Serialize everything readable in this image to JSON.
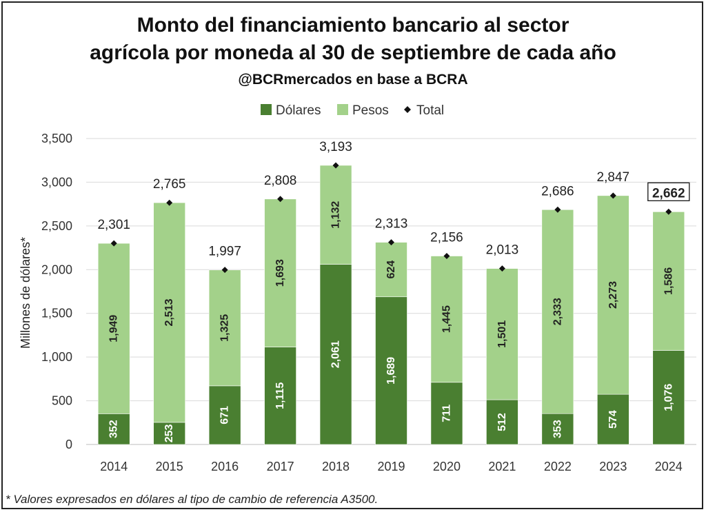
{
  "chart_data": {
    "type": "bar",
    "stacked": true,
    "title_lines": [
      "Monto del financiamiento bancario al sector",
      "agrícola por moneda al 30 de septiembre de cada año"
    ],
    "subtitle": "@BCRmercados en base a BCRA",
    "ylabel": "Millones de dólares*",
    "xlabel": "",
    "ylim": [
      0,
      3500
    ],
    "yticks": [
      0,
      500,
      1000,
      1500,
      2000,
      2500,
      3000,
      3500
    ],
    "ytick_labels": [
      "0",
      "500",
      "1,000",
      "1,500",
      "2,000",
      "2,500",
      "3,000",
      "3,500"
    ],
    "grid": true,
    "legend_position": "top",
    "categories": [
      "2014",
      "2015",
      "2016",
      "2017",
      "2018",
      "2019",
      "2020",
      "2021",
      "2022",
      "2023",
      "2024"
    ],
    "series": [
      {
        "name": "Dólares",
        "color": "#4a7f31",
        "values": [
          352,
          253,
          671,
          1115,
          2061,
          1689,
          711,
          512,
          353,
          574,
          1076
        ],
        "labels": [
          "352",
          "253",
          "671",
          "1,115",
          "2,061",
          "1,689",
          "711",
          "512",
          "353",
          "574",
          "1,076"
        ]
      },
      {
        "name": "Pesos",
        "color": "#a3d18a",
        "values": [
          1949,
          2513,
          1325,
          1693,
          1132,
          624,
          1445,
          1501,
          2333,
          2273,
          1586
        ],
        "labels": [
          "1,949",
          "2,513",
          "1,325",
          "1,693",
          "1,132",
          "624",
          "1,445",
          "1,501",
          "2,333",
          "2,273",
          "1,586"
        ]
      }
    ],
    "total": {
      "name": "Total",
      "values": [
        2301,
        2765,
        1997,
        2808,
        3193,
        2313,
        2156,
        2013,
        2686,
        2847,
        2662
      ],
      "labels": [
        "2,301",
        "2,765",
        "1,997",
        "2,808",
        "3,193",
        "2,313",
        "2,156",
        "2,013",
        "2,686",
        "2,847",
        "2,662"
      ],
      "highlighted_index": 10
    },
    "footnote": "* Valores expresados en dólares al tipo de cambio de referencia A3500."
  }
}
